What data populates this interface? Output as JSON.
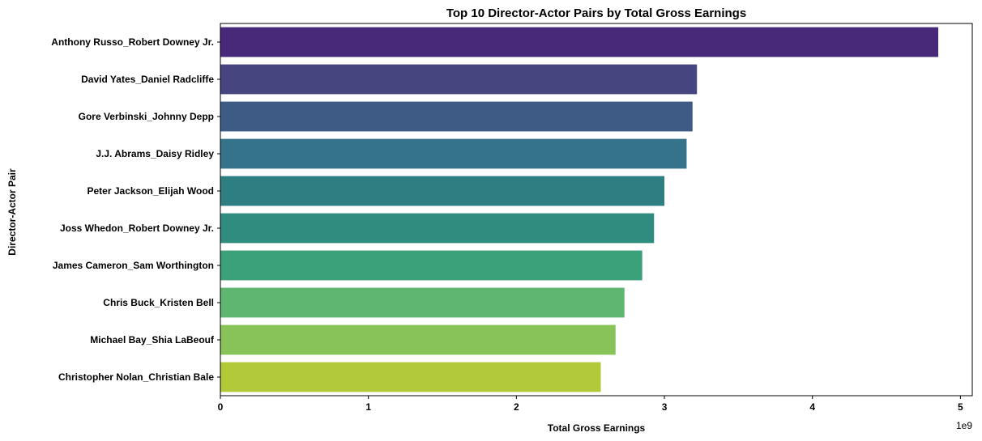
{
  "chart_data": {
    "type": "bar",
    "orientation": "horizontal",
    "title": "Top 10 Director-Actor Pairs by Total Gross Earnings",
    "xlabel": "Total Gross Earnings",
    "ylabel": "Director-Actor Pair",
    "x_offset_label": "1e9",
    "x_scale": 1000000000,
    "xlim": [
      0,
      5.08
    ],
    "x_ticks": [
      0,
      1,
      2,
      3,
      4,
      5
    ],
    "grid": false,
    "legend": "none",
    "categories": [
      "Anthony Russo_Robert Downey Jr.",
      "David Yates_Daniel Radcliffe",
      "Gore Verbinski_Johnny Depp",
      "J.J. Abrams_Daisy Ridley",
      "Peter Jackson_Elijah Wood",
      "Joss Whedon_Robert Downey Jr.",
      "James Cameron_Sam Worthington",
      "Chris Buck_Kristen Bell",
      "Michael Bay_Shia LaBeouf",
      "Christopher Nolan_Christian Bale"
    ],
    "values": [
      4.85,
      3.22,
      3.19,
      3.15,
      3.0,
      2.93,
      2.85,
      2.73,
      2.67,
      2.57
    ],
    "colors": [
      "#482878",
      "#46457f",
      "#3e5b86",
      "#34738a",
      "#2e7f82",
      "#2f8c7e",
      "#3ba17a",
      "#5fb670",
      "#88c35a",
      "#b2c93a"
    ]
  }
}
